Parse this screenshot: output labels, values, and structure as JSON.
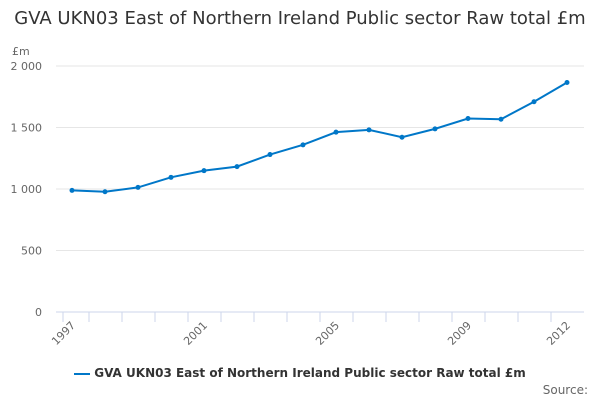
{
  "chart_data": {
    "type": "line",
    "title": "GVA UKN03 East of Northern Ireland Public sector Raw total £m",
    "ylabel": "£m",
    "ylim": [
      0,
      2000
    ],
    "yticks": [
      0,
      500,
      1000,
      1500,
      2000
    ],
    "ytick_labels": [
      "0",
      "500",
      "1 000",
      "1 500",
      "2 000"
    ],
    "x": [
      1997,
      1998,
      1999,
      2000,
      2001,
      2002,
      2003,
      2004,
      2005,
      2006,
      2007,
      2008,
      2009,
      2010,
      2011,
      2012
    ],
    "xtick_labels": [
      "1997",
      "2001",
      "2005",
      "2009",
      "2012"
    ],
    "series": [
      {
        "name": "GVA UKN03 East of Northern Ireland Public sector Raw total £m",
        "color": "#0077c8",
        "values": [
          989,
          978,
          1013,
          1095,
          1149,
          1182,
          1280,
          1359,
          1462,
          1481,
          1421,
          1489,
          1573,
          1567,
          1709,
          1866
        ]
      }
    ],
    "grid": true,
    "legend": "bottom"
  },
  "source_label": "Source:"
}
